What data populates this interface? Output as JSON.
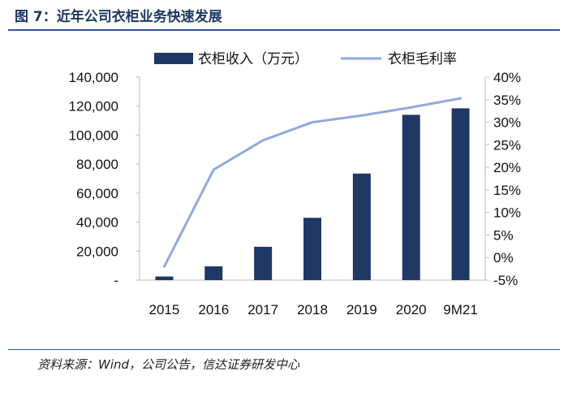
{
  "figure": {
    "title": "图 7：近年公司衣柜业务快速发展",
    "source": "资料来源：Wind，公司公告，信达证券研发中心"
  },
  "chart_data": {
    "type": "bar",
    "title": "",
    "xlabel": "",
    "ylabel": "",
    "categories": [
      "2015",
      "2016",
      "2017",
      "2018",
      "2019",
      "2020",
      "9M21"
    ],
    "series": [
      {
        "name": "衣柜收入（万元）",
        "type": "bar",
        "axis": "left",
        "color": "#203864",
        "values": [
          2500,
          9500,
          23000,
          43000,
          73500,
          114000,
          118500
        ]
      },
      {
        "name": "衣柜毛利率",
        "type": "line",
        "axis": "right",
        "color": "#8faadc",
        "values": [
          -2.0,
          19.5,
          26.0,
          30.0,
          31.5,
          33.3,
          35.3
        ]
      }
    ],
    "ylim": [
      0,
      140000
    ],
    "y_ticks": [
      "-",
      "20,000",
      "40,000",
      "60,000",
      "80,000",
      "100,000",
      "120,000",
      "140,000"
    ],
    "y2lim": [
      -5,
      40
    ],
    "y2_ticks": [
      "-5%",
      "0%",
      "5%",
      "10%",
      "15%",
      "20%",
      "25%",
      "30%",
      "35%",
      "40%"
    ],
    "grid": false,
    "legend_position": "top"
  }
}
